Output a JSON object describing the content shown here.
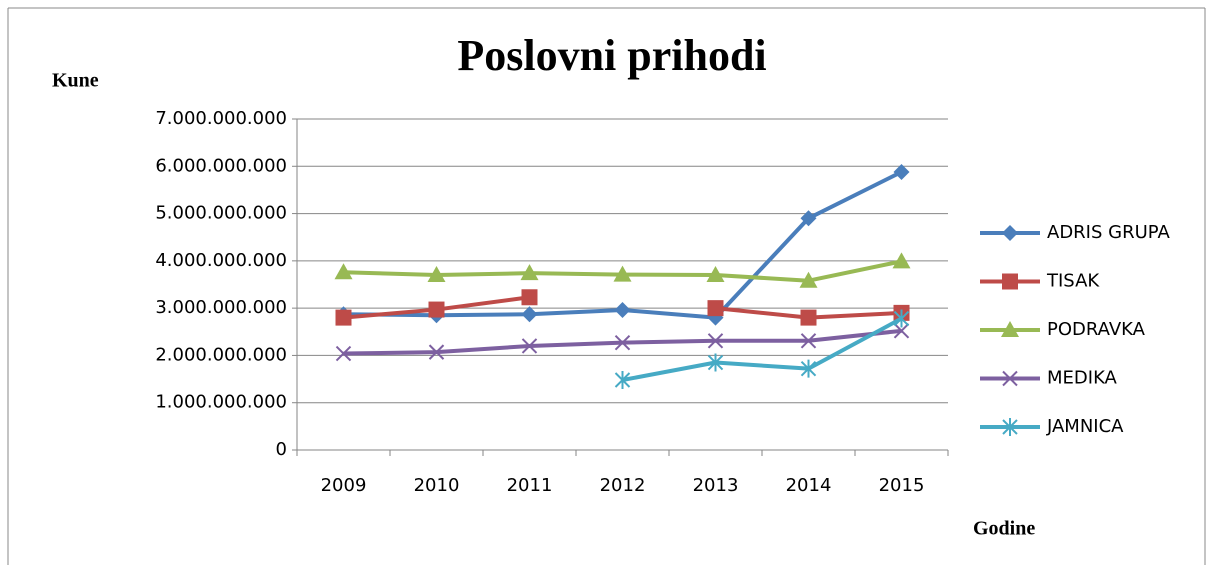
{
  "chart_data": {
    "type": "line",
    "title": "Poslovni prihodi",
    "y_label": "Kune",
    "x_label": "Godine",
    "categories": [
      "2009",
      "2010",
      "2011",
      "2012",
      "2013",
      "2014",
      "2015"
    ],
    "series": [
      {
        "name": "ADRIS GRUPA",
        "color": "#4a7ebb",
        "marker": "diamond",
        "values": [
          2870000000,
          2850000000,
          2870000000,
          2960000000,
          2800000000,
          4900000000,
          5880000000
        ]
      },
      {
        "name": "TISAK",
        "color": "#be4b48",
        "marker": "square",
        "values": [
          2800000000,
          2970000000,
          3230000000,
          null,
          3000000000,
          2800000000,
          2900000000
        ]
      },
      {
        "name": "PODRAVKA",
        "color": "#98b954",
        "marker": "triangle",
        "values": [
          3760000000,
          3700000000,
          3740000000,
          3710000000,
          3700000000,
          3580000000,
          3990000000
        ]
      },
      {
        "name": "MEDIKA",
        "color": "#7d60a0",
        "marker": "x",
        "values": [
          2040000000,
          2070000000,
          2200000000,
          2270000000,
          2310000000,
          2310000000,
          2520000000
        ]
      },
      {
        "name": "JAMNICA",
        "color": "#46aac5",
        "marker": "star",
        "values": [
          null,
          null,
          null,
          1480000000,
          1850000000,
          1720000000,
          2780000000
        ]
      }
    ],
    "ylim": [
      0,
      7000000000
    ],
    "yticks": [
      0,
      {
        "value": 1000000000,
        "label": "1.000.000.000"
      },
      {
        "value": 2000000000,
        "label": "2.000.000.000"
      },
      {
        "value": 3000000000,
        "label": "3.000.000.000"
      },
      {
        "value": 4000000000,
        "label": "4.000.000.000"
      },
      {
        "value": 5000000000,
        "label": "5.000.000.000"
      },
      {
        "value": 6000000000,
        "label": "6.000.000.000"
      },
      {
        "value": 7000000000,
        "label": "7.000.000.000"
      }
    ],
    "grid": true,
    "legend": "right"
  }
}
